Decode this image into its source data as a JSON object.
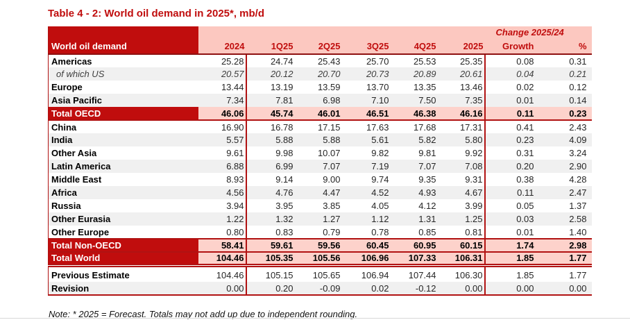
{
  "page": {
    "title": "Table 4 - 2: World oil demand in 2025*, mb/d",
    "note": "Note: * 2025 = Forecast. Totals may not add up due to independent rounding."
  },
  "colors": {
    "dark_red": "#c00d0d",
    "line_red": "#b11212",
    "header_pink": "#fcc8c0",
    "total_row_pink": "#fdd2cb",
    "stripe_gray": "#f0f0f0",
    "header_text_on_red": "#ffffff"
  },
  "table": {
    "label_header": "World oil demand",
    "change_group_header": "Change 2025/24",
    "columns": [
      "2024",
      "1Q25",
      "2Q25",
      "3Q25",
      "4Q25",
      "2025",
      "Growth",
      "%"
    ],
    "rows": [
      {
        "label": "Americas",
        "style": "normal",
        "striped": false,
        "values": [
          "25.28",
          "24.74",
          "25.43",
          "25.70",
          "25.53",
          "25.35",
          "0.08",
          "0.31"
        ]
      },
      {
        "label": "of which US",
        "style": "subrow",
        "striped": true,
        "values": [
          "20.57",
          "20.12",
          "20.70",
          "20.73",
          "20.89",
          "20.61",
          "0.04",
          "0.21"
        ]
      },
      {
        "label": "Europe",
        "style": "normal",
        "striped": false,
        "values": [
          "13.44",
          "13.19",
          "13.59",
          "13.70",
          "13.35",
          "13.46",
          "0.02",
          "0.12"
        ]
      },
      {
        "label": "Asia Pacific",
        "style": "normal",
        "striped": true,
        "values": [
          "7.34",
          "7.81",
          "6.98",
          "7.10",
          "7.50",
          "7.35",
          "0.01",
          "0.14"
        ]
      },
      {
        "label": "Total OECD",
        "style": "total",
        "striped": false,
        "border_bottom": true,
        "values": [
          "46.06",
          "45.74",
          "46.01",
          "46.51",
          "46.38",
          "46.16",
          "0.11",
          "0.23"
        ]
      },
      {
        "label": "China",
        "style": "normal",
        "striped": false,
        "values": [
          "16.90",
          "16.78",
          "17.15",
          "17.63",
          "17.68",
          "17.31",
          "0.41",
          "2.43"
        ]
      },
      {
        "label": "India",
        "style": "normal",
        "striped": true,
        "values": [
          "5.57",
          "5.88",
          "5.88",
          "5.61",
          "5.82",
          "5.80",
          "0.23",
          "4.09"
        ]
      },
      {
        "label": "Other Asia",
        "style": "normal",
        "striped": false,
        "values": [
          "9.61",
          "9.98",
          "10.07",
          "9.82",
          "9.81",
          "9.92",
          "0.31",
          "3.24"
        ]
      },
      {
        "label": "Latin America",
        "style": "normal",
        "striped": true,
        "values": [
          "6.88",
          "6.99",
          "7.07",
          "7.19",
          "7.07",
          "7.08",
          "0.20",
          "2.90"
        ]
      },
      {
        "label": "Middle East",
        "style": "normal",
        "striped": false,
        "values": [
          "8.93",
          "9.14",
          "9.00",
          "9.74",
          "9.35",
          "9.31",
          "0.38",
          "4.28"
        ]
      },
      {
        "label": "Africa",
        "style": "normal",
        "striped": true,
        "values": [
          "4.56",
          "4.76",
          "4.47",
          "4.52",
          "4.93",
          "4.67",
          "0.11",
          "2.47"
        ]
      },
      {
        "label": "Russia",
        "style": "normal",
        "striped": false,
        "values": [
          "3.94",
          "3.95",
          "3.85",
          "4.05",
          "4.12",
          "3.99",
          "0.05",
          "1.37"
        ]
      },
      {
        "label": "Other Eurasia",
        "style": "normal",
        "striped": true,
        "values": [
          "1.22",
          "1.32",
          "1.27",
          "1.12",
          "1.31",
          "1.25",
          "0.03",
          "2.58"
        ]
      },
      {
        "label": "Other Europe",
        "style": "normal",
        "striped": false,
        "values": [
          "0.80",
          "0.83",
          "0.79",
          "0.78",
          "0.85",
          "0.81",
          "0.01",
          "1.40"
        ]
      },
      {
        "label": "Total Non-OECD",
        "style": "total",
        "striped": false,
        "border_top": true,
        "values": [
          "58.41",
          "59.61",
          "59.56",
          "60.45",
          "60.95",
          "60.15",
          "1.74",
          "2.98"
        ]
      },
      {
        "label": "Total World",
        "style": "total",
        "striped": false,
        "border_top": true,
        "double_bottom": true,
        "gap_after": true,
        "values": [
          "104.46",
          "105.35",
          "105.56",
          "106.96",
          "107.33",
          "106.31",
          "1.85",
          "1.77"
        ]
      },
      {
        "label": "Previous Estimate",
        "style": "normal",
        "striped": false,
        "values": [
          "104.46",
          "105.15",
          "105.65",
          "106.94",
          "107.44",
          "106.30",
          "1.85",
          "1.77"
        ]
      },
      {
        "label": "Revision",
        "style": "normal",
        "striped": true,
        "border_bottom": true,
        "values": [
          "0.00",
          "0.20",
          "-0.09",
          "0.02",
          "-0.12",
          "0.00",
          "0.00",
          "0.00"
        ]
      }
    ]
  }
}
